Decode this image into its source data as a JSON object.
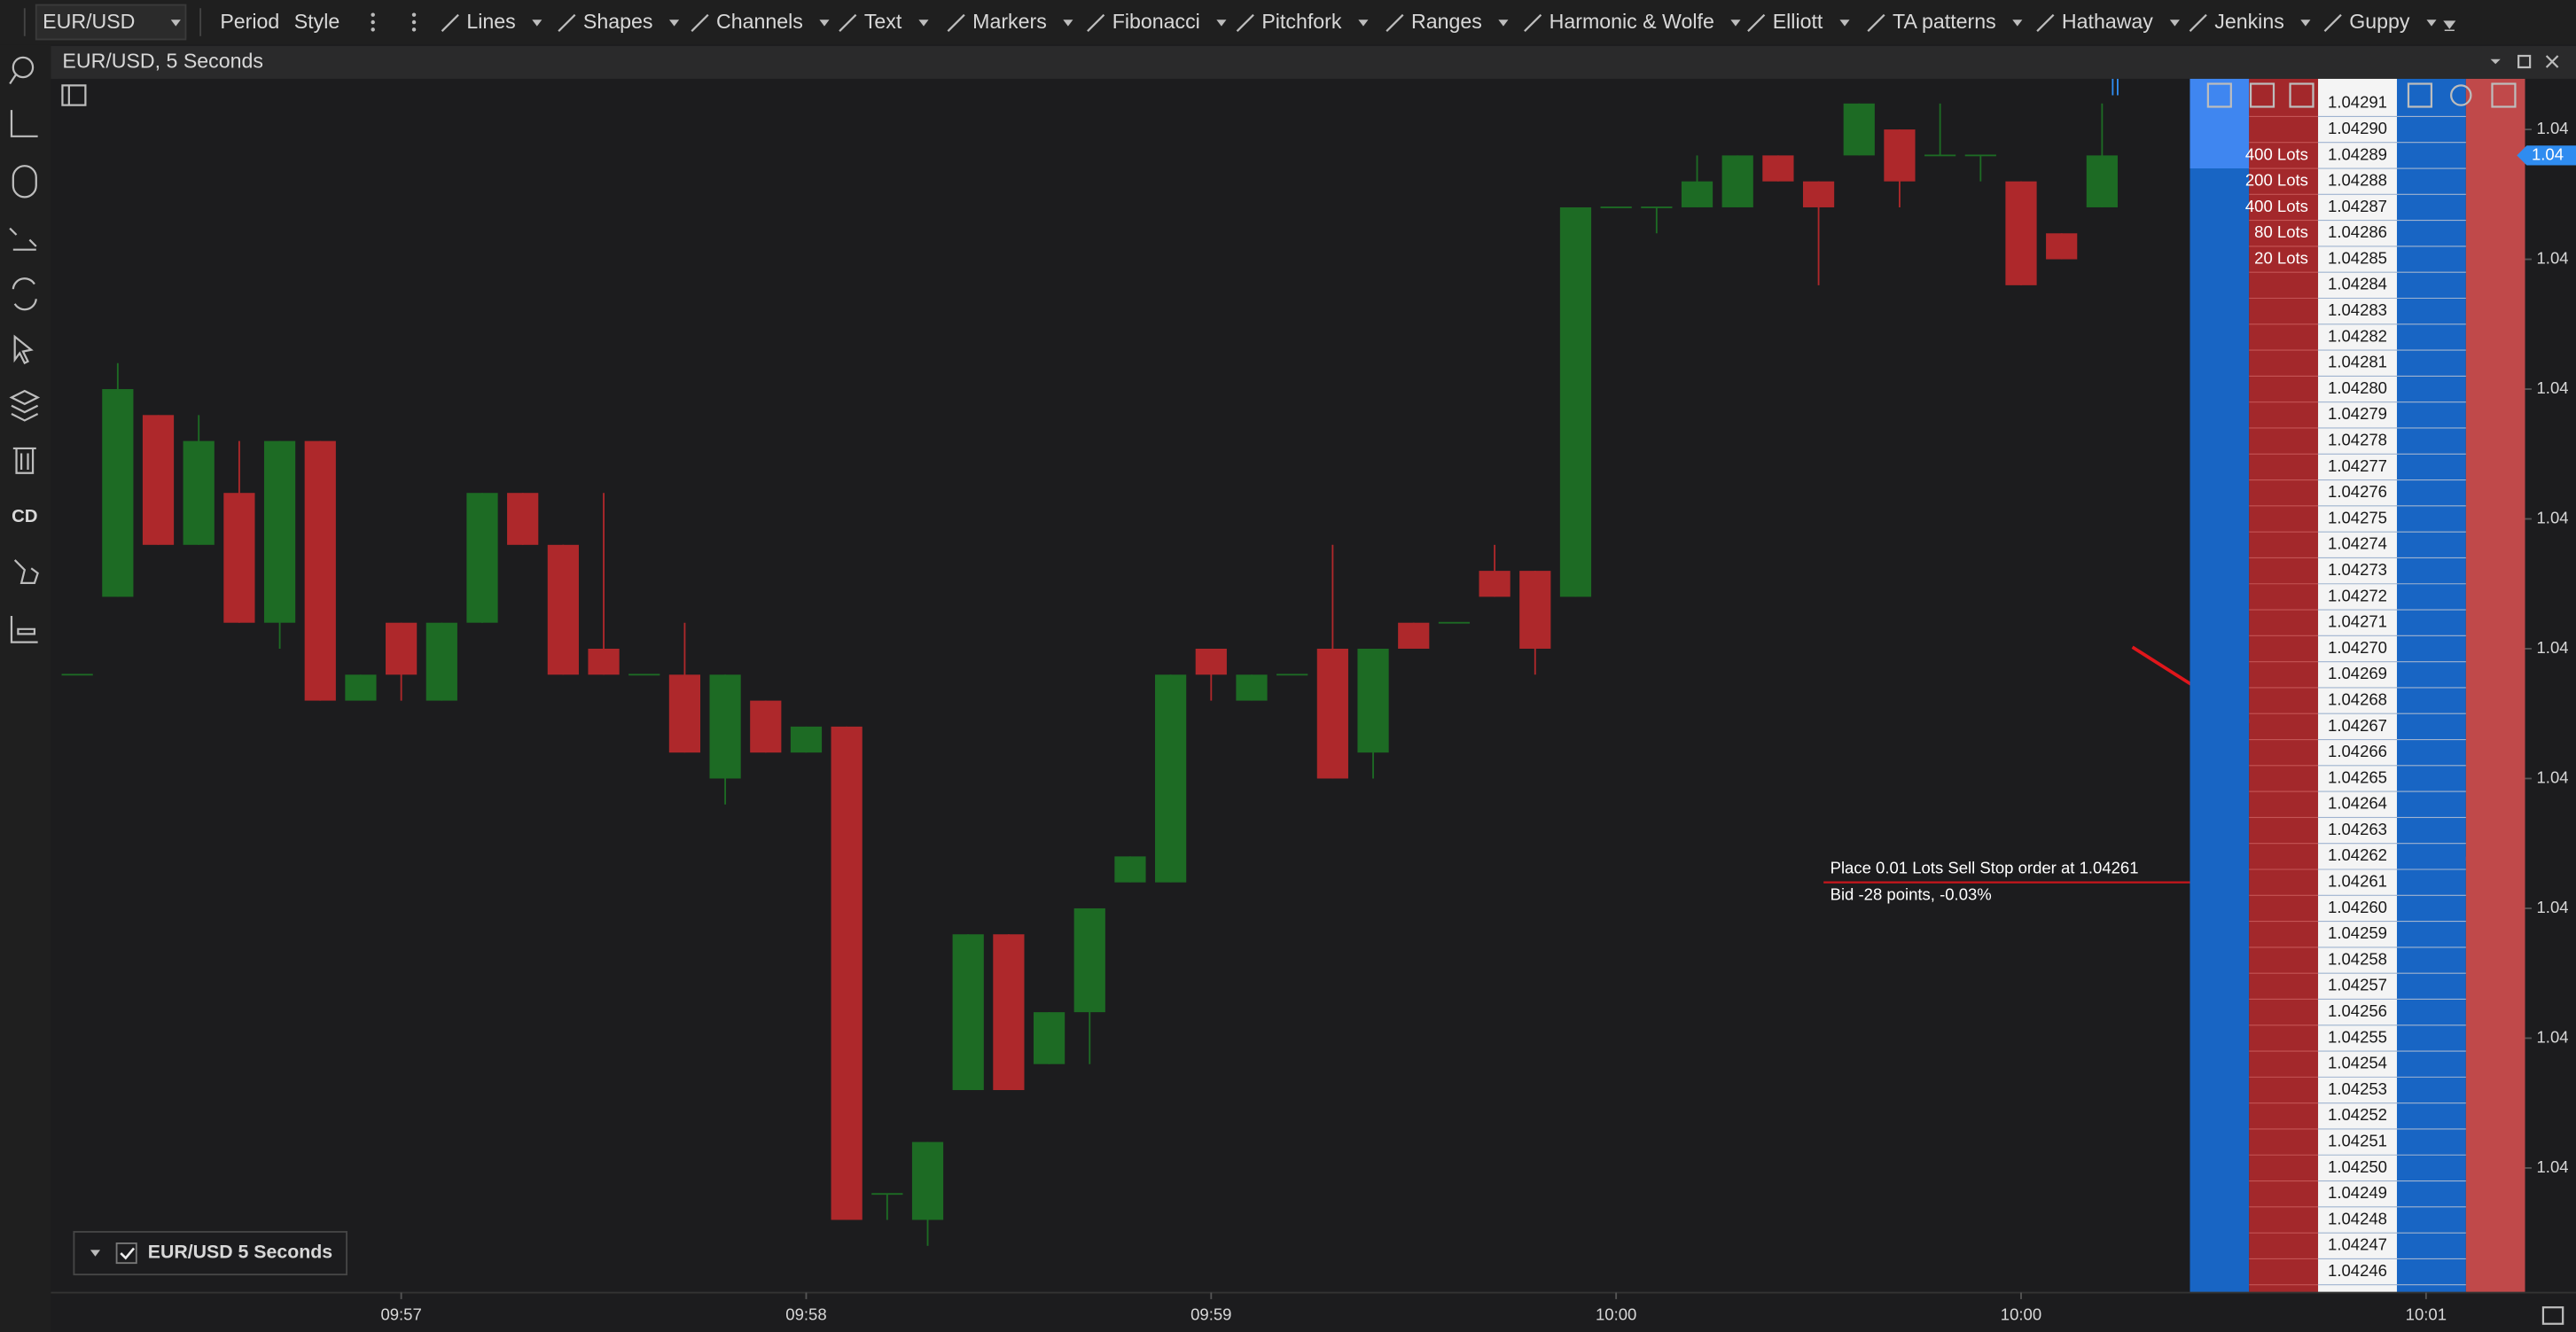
{
  "toolbar": {
    "symbol": "EUR/USD",
    "items": [
      "Period",
      "Style",
      "Lines",
      "Shapes",
      "Channels",
      "Text",
      "Markers",
      "Fibonacci",
      "Pitchfork",
      "Ranges",
      "Harmonic & Wolfe",
      "Elliott",
      "TA patterns",
      "Hathaway",
      "Jenkins",
      "Guppy"
    ]
  },
  "left_toolbar": {
    "label": "CD"
  },
  "chart_data": {
    "type": "candlestick",
    "title": "EUR/USD, 5 Seconds",
    "legend": "EUR/USD 5 Seconds",
    "categories": [
      null,
      null,
      null,
      null,
      null,
      null,
      null,
      null,
      "09:57",
      null,
      null,
      null,
      null,
      null,
      null,
      null,
      null,
      null,
      "09:58",
      null,
      null,
      null,
      null,
      null,
      null,
      null,
      null,
      null,
      "09:59",
      null,
      null,
      null,
      null,
      null,
      null,
      null,
      null,
      null,
      "10:00",
      null,
      null,
      null,
      null,
      null,
      null,
      null,
      null,
      null,
      "10:00",
      null,
      null,
      null,
      null,
      null,
      null,
      null,
      null,
      null,
      "10:01",
      null
    ],
    "open": [
      1.04269,
      1.04272,
      1.04279,
      1.04274,
      1.04276,
      1.04271,
      1.04278,
      1.04268,
      1.04271,
      1.04268,
      1.04271,
      1.04276,
      1.04274,
      1.0427,
      1.04269,
      1.04269,
      1.04265,
      1.04268,
      1.04266,
      1.04267,
      1.04249,
      1.04248,
      1.04253,
      1.04259,
      1.04254,
      1.04256,
      1.04261,
      1.04261,
      1.0427,
      1.04268,
      1.04269,
      1.0427,
      1.04266,
      1.04271,
      1.04271,
      1.04273,
      1.04273,
      1.04272,
      1.04287,
      1.04287,
      1.04287,
      1.04287,
      1.04289,
      1.04288,
      1.04289,
      1.0429,
      1.04289,
      1.04289,
      1.04288,
      1.04286,
      1.04287,
      null,
      null,
      null,
      null,
      null,
      null,
      null,
      null,
      null
    ],
    "high": [
      1.04269,
      1.04281,
      1.04279,
      1.04279,
      1.04278,
      1.04278,
      1.04278,
      1.04269,
      1.04271,
      1.04271,
      1.04276,
      1.04276,
      1.04274,
      1.04276,
      1.04269,
      1.04271,
      1.04269,
      1.04268,
      1.04267,
      1.04267,
      1.04249,
      1.04251,
      1.04259,
      1.04259,
      1.04256,
      1.0426,
      1.04262,
      1.04269,
      1.0427,
      1.04269,
      1.04269,
      1.04274,
      1.0427,
      1.04271,
      1.04271,
      1.04274,
      1.04273,
      1.04287,
      1.04287,
      1.04287,
      1.04289,
      1.04289,
      1.04289,
      1.04288,
      1.04291,
      1.0429,
      1.04291,
      1.04289,
      1.04288,
      1.04286,
      1.04291,
      null,
      null,
      null,
      null,
      null,
      null,
      null,
      null,
      null
    ],
    "low": [
      1.04269,
      1.04272,
      1.04274,
      1.04274,
      1.04271,
      1.0427,
      1.04268,
      1.04268,
      1.04268,
      1.04268,
      1.04271,
      1.04274,
      1.04269,
      1.04269,
      1.04269,
      1.04266,
      1.04264,
      1.04266,
      1.04266,
      1.04248,
      1.04248,
      1.04247,
      1.04253,
      1.04253,
      1.04254,
      1.04254,
      1.04261,
      1.04261,
      1.04268,
      1.04268,
      1.04269,
      1.04265,
      1.04265,
      1.0427,
      1.04271,
      1.04272,
      1.04269,
      1.04272,
      1.04287,
      1.04286,
      1.04287,
      1.04287,
      1.04288,
      1.04284,
      1.04289,
      1.04287,
      1.04289,
      1.04288,
      1.04284,
      1.04285,
      1.04287,
      null,
      null,
      null,
      null,
      null,
      null,
      null,
      null,
      null
    ],
    "close": [
      1.04269,
      1.0428,
      1.04274,
      1.04278,
      1.04271,
      1.04278,
      1.04268,
      1.04269,
      1.04269,
      1.04271,
      1.04276,
      1.04274,
      1.04269,
      1.04269,
      1.04269,
      1.04266,
      1.04269,
      1.04266,
      1.04267,
      1.04248,
      1.04249,
      1.04251,
      1.04259,
      1.04253,
      1.04256,
      1.0426,
      1.04262,
      1.04269,
      1.04269,
      1.04269,
      1.04269,
      1.04265,
      1.0427,
      1.0427,
      1.04271,
      1.04272,
      1.0427,
      1.04287,
      1.04287,
      1.04287,
      1.04288,
      1.04289,
      1.04288,
      1.04287,
      1.04291,
      1.04288,
      1.04289,
      1.04289,
      1.04284,
      1.04285,
      1.04289,
      null,
      null,
      null,
      null,
      null,
      null,
      null,
      null,
      null
    ],
    "up_color": "#1d6b24",
    "down_color": "#ae282b",
    "ylim": [
      1.042452,
      1.0429195
    ],
    "yticks": [
      {
        "value": 1.0429,
        "label": "1.04"
      },
      {
        "value": 1.04285,
        "label": "1.04"
      },
      {
        "value": 1.0428,
        "label": "1.04"
      },
      {
        "value": 1.04275,
        "label": "1.04"
      },
      {
        "value": 1.0427,
        "label": "1.04"
      },
      {
        "value": 1.04265,
        "label": "1.04"
      },
      {
        "value": 1.0426,
        "label": "1.04"
      },
      {
        "value": 1.04255,
        "label": "1.04"
      },
      {
        "value": 1.0425,
        "label": "1.04"
      }
    ],
    "grid": false,
    "price_marker": {
      "value": 1.04289,
      "label": "1.04"
    },
    "order_line": {
      "value": 1.04261,
      "label": "Place 0.01 Lots Sell Stop order at 1.04261",
      "sublabel": "Bid -28 points, -0.03%"
    }
  },
  "dom_ladder": {
    "rows": [
      {
        "price": "1.04291"
      },
      {
        "price": "1.04290"
      },
      {
        "price": "1.04289",
        "lots": "400 Lots"
      },
      {
        "price": "1.04288",
        "lots": "200 Lots"
      },
      {
        "price": "1.04287",
        "lots": "400 Lots"
      },
      {
        "price": "1.04286",
        "lots": "80 Lots"
      },
      {
        "price": "1.04285",
        "lots": "20 Lots"
      },
      {
        "price": "1.04284"
      },
      {
        "price": "1.04283"
      },
      {
        "price": "1.04282"
      },
      {
        "price": "1.04281"
      },
      {
        "price": "1.04280"
      },
      {
        "price": "1.04279"
      },
      {
        "price": "1.04278"
      },
      {
        "price": "1.04277"
      },
      {
        "price": "1.04276"
      },
      {
        "price": "1.04275"
      },
      {
        "price": "1.04274"
      },
      {
        "price": "1.04273"
      },
      {
        "price": "1.04272"
      },
      {
        "price": "1.04271"
      },
      {
        "price": "1.04270"
      },
      {
        "price": "1.04269"
      },
      {
        "price": "1.04268"
      },
      {
        "price": "1.04267"
      },
      {
        "price": "1.04266"
      },
      {
        "price": "1.04265"
      },
      {
        "price": "1.04264"
      },
      {
        "price": "1.04263"
      },
      {
        "price": "1.04262"
      },
      {
        "price": "1.04261"
      },
      {
        "price": "1.04260"
      },
      {
        "price": "1.04259"
      },
      {
        "price": "1.04258"
      },
      {
        "price": "1.04257"
      },
      {
        "price": "1.04256"
      },
      {
        "price": "1.04255"
      },
      {
        "price": "1.04254"
      },
      {
        "price": "1.04253"
      },
      {
        "price": "1.04252"
      },
      {
        "price": "1.04251"
      },
      {
        "price": "1.04250"
      },
      {
        "price": "1.04249"
      },
      {
        "price": "1.04248"
      },
      {
        "price": "1.04247"
      },
      {
        "price": "1.04246"
      }
    ]
  }
}
